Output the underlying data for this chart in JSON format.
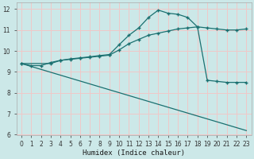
{
  "xlabel": "Humidex (Indice chaleur)",
  "ylabel": "",
  "bg_color": "#cce8e8",
  "grid_color": "#f0c8c8",
  "line_color": "#1a7070",
  "xlim": [
    -0.5,
    23.5
  ],
  "ylim": [
    6,
    12.3
  ],
  "xticks": [
    0,
    1,
    2,
    3,
    4,
    5,
    6,
    7,
    8,
    9,
    10,
    11,
    12,
    13,
    14,
    15,
    16,
    17,
    18,
    19,
    20,
    21,
    22,
    23
  ],
  "yticks": [
    6,
    7,
    8,
    9,
    10,
    11,
    12
  ],
  "series1_x": [
    0,
    1,
    2,
    3,
    4,
    5,
    6,
    7,
    8,
    9,
    10,
    11,
    12,
    13,
    14,
    15,
    16,
    17,
    18,
    19,
    20,
    21,
    22,
    23
  ],
  "series1_y": [
    9.4,
    9.3,
    9.3,
    9.45,
    9.55,
    9.6,
    9.65,
    9.7,
    9.75,
    9.8,
    10.05,
    10.35,
    10.55,
    10.75,
    10.85,
    10.95,
    11.05,
    11.1,
    11.15,
    11.1,
    11.05,
    11.0,
    11.0,
    11.05
  ],
  "series2_x": [
    0,
    3,
    4,
    5,
    6,
    7,
    8,
    9,
    10,
    11,
    12,
    13,
    14,
    15,
    16,
    17,
    18,
    19,
    20,
    21,
    22,
    23
  ],
  "series2_y": [
    9.4,
    9.4,
    9.55,
    9.62,
    9.67,
    9.72,
    9.78,
    9.83,
    10.3,
    10.75,
    11.1,
    11.6,
    11.95,
    11.8,
    11.75,
    11.6,
    11.15,
    8.6,
    8.55,
    8.5,
    8.5,
    8.5
  ],
  "series3_x": [
    0,
    23
  ],
  "series3_y": [
    9.4,
    6.2
  ]
}
